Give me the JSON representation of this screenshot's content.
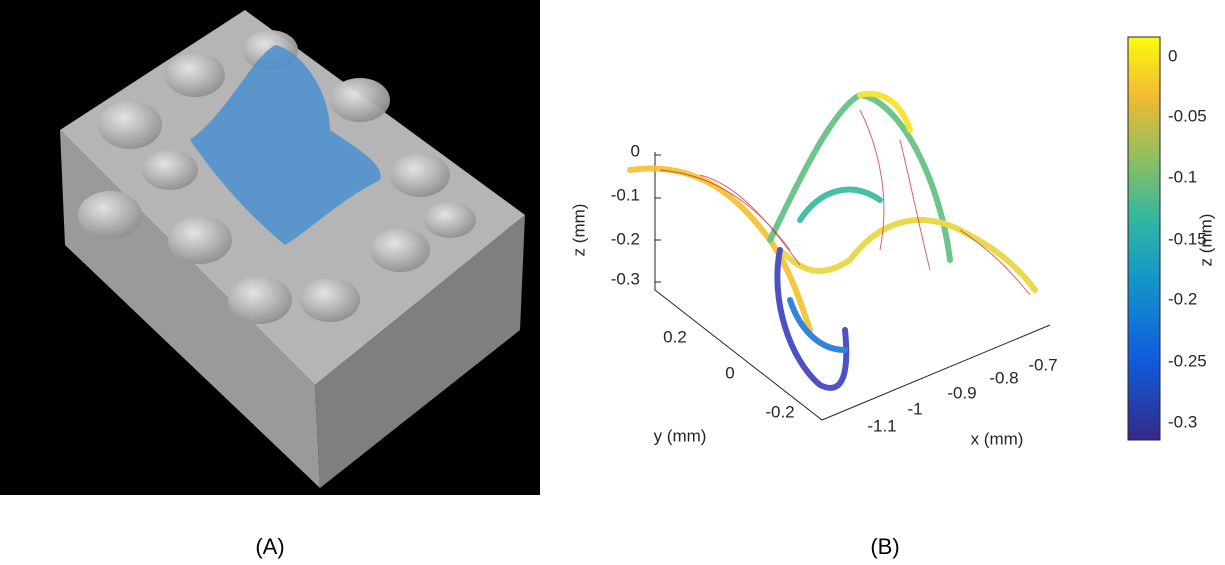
{
  "panels": [
    {
      "label": "(A)"
    },
    {
      "label": "(B)",
      "z_axis": {
        "label": "z (mm)",
        "ticks": [
          "0",
          "-0.1",
          "-0.2",
          "-0.3"
        ]
      },
      "y_axis": {
        "label": "y (mm)",
        "ticks": [
          "0.2",
          "0",
          "-0.2"
        ]
      },
      "x_axis": {
        "label": "x (mm)",
        "ticks": [
          "-1.1",
          "-1",
          "-0.9",
          "-0.8",
          "-0.7"
        ]
      },
      "colorbar": {
        "label": "z (mm)",
        "ticks": [
          "0",
          "-0.05",
          "-0.1",
          "-0.15",
          "-0.2",
          "-0.25",
          "-0.3"
        ]
      }
    }
  ]
}
